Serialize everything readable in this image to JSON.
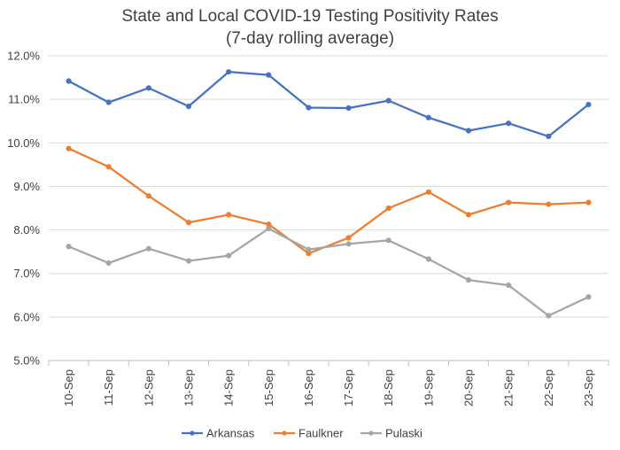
{
  "chart_data": {
    "type": "line",
    "title": "State and Local COVID-19 Testing Positivity Rates",
    "subtitle": "(7-day rolling average)",
    "xlabel": "",
    "ylabel": "",
    "categories": [
      "10-Sep",
      "11-Sep",
      "12-Sep",
      "13-Sep",
      "14-Sep",
      "15-Sep",
      "16-Sep",
      "17-Sep",
      "18-Sep",
      "19-Sep",
      "20-Sep",
      "21-Sep",
      "22-Sep",
      "23-Sep"
    ],
    "ylim": [
      5.0,
      12.0
    ],
    "yticks": [
      5.0,
      6.0,
      7.0,
      8.0,
      9.0,
      10.0,
      11.0,
      12.0
    ],
    "ytick_labels": [
      "5.0%",
      "6.0%",
      "7.0%",
      "8.0%",
      "9.0%",
      "10.0%",
      "11.0%",
      "12.0%"
    ],
    "grid": true,
    "legend_position": "bottom",
    "series": [
      {
        "name": "Arkansas",
        "color": "#4472C4",
        "values": [
          11.42,
          10.93,
          11.26,
          10.84,
          11.63,
          11.56,
          10.81,
          10.8,
          10.97,
          10.58,
          10.28,
          10.45,
          10.15,
          10.88
        ]
      },
      {
        "name": "Faulkner",
        "color": "#ED7D31",
        "values": [
          9.87,
          9.45,
          8.78,
          8.17,
          8.35,
          8.13,
          7.46,
          7.82,
          8.5,
          8.87,
          8.35,
          8.63,
          8.59,
          8.63
        ]
      },
      {
        "name": "Pulaski",
        "color": "#A5A5A5",
        "values": [
          7.62,
          7.24,
          7.57,
          7.29,
          7.41,
          8.03,
          7.55,
          7.68,
          7.76,
          7.33,
          6.85,
          6.73,
          6.03,
          6.46
        ]
      }
    ]
  }
}
